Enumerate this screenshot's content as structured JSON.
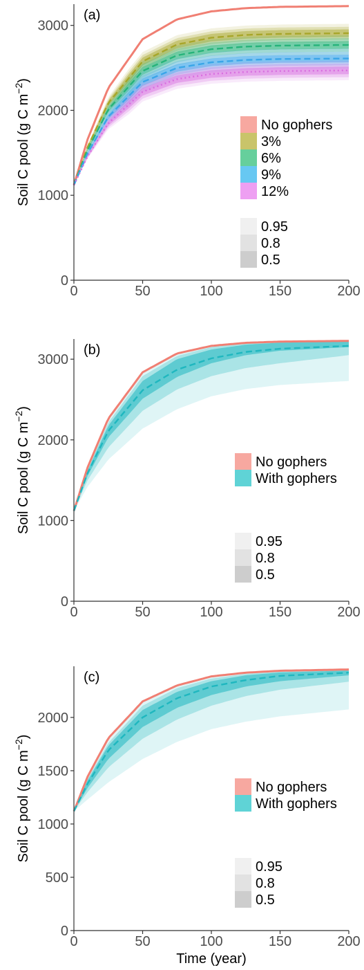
{
  "chart_data": [
    {
      "type": "line",
      "panel_label": "(a)",
      "ylabel": "Soil C pool (g C m",
      "ylabel_sup": "−2",
      "ylabel_close": ")",
      "xlabel": "",
      "xlim": [
        0,
        200
      ],
      "ylim": [
        0,
        3250
      ],
      "x_ticks": [
        0,
        50,
        100,
        150,
        200
      ],
      "y_ticks": [
        0,
        1000,
        2000,
        3000
      ],
      "series": [
        {
          "name": "No gophers",
          "color": "#f07f73",
          "line_style": "solid",
          "x": [
            0,
            10,
            25,
            50,
            75,
            100,
            125,
            150,
            200
          ],
          "y": [
            1120,
            1660,
            2263,
            2838,
            3071,
            3165,
            3203,
            3218,
            3227
          ],
          "band": null
        },
        {
          "name": "3%",
          "color": "#a7a62a",
          "line_style": "dashed",
          "x": [
            0,
            10,
            25,
            50,
            75,
            100,
            125,
            150,
            200
          ],
          "y": [
            1120,
            1570,
            2085,
            2576,
            2775,
            2855,
            2888,
            2900,
            2908
          ],
          "band": [
            45,
            75,
            110
          ]
        },
        {
          "name": "6%",
          "color": "#26b37a",
          "line_style": "dashed",
          "x": [
            0,
            10,
            25,
            50,
            75,
            100,
            125,
            150,
            200
          ],
          "y": [
            1120,
            1535,
            2010,
            2463,
            2647,
            2720,
            2750,
            2762,
            2770
          ],
          "band": [
            45,
            80,
            115
          ]
        },
        {
          "name": "9%",
          "color": "#3aa5e8",
          "line_style": "dashed",
          "x": [
            0,
            10,
            25,
            50,
            75,
            100,
            125,
            150,
            200
          ],
          "y": [
            1120,
            1495,
            1924,
            2333,
            2499,
            2565,
            2593,
            2604,
            2610
          ],
          "band": [
            45,
            80,
            120
          ]
        },
        {
          "name": "12%",
          "color": "#d86ee0",
          "line_style": "dotted",
          "x": [
            0,
            10,
            25,
            50,
            75,
            100,
            125,
            150,
            200
          ],
          "y": [
            1120,
            1460,
            1848,
            2218,
            2368,
            2428,
            2452,
            2462,
            2470
          ],
          "band": [
            45,
            80,
            115
          ]
        }
      ],
      "legend_series": [
        "No gophers",
        "3%",
        "6%",
        "9%",
        "12%"
      ],
      "legend_series_colors": [
        "#f7a8a0",
        "#c9c46a",
        "#66cf9c",
        "#67c8f2",
        "#ee9ff2"
      ],
      "legend_ci": [
        "0.95",
        "0.8",
        "0.5"
      ],
      "legend_ci_colors": [
        "#f0f0f0",
        "#e2e2e2",
        "#cdcdcd"
      ],
      "legend_position": "right"
    },
    {
      "type": "line",
      "panel_label": "(b)",
      "ylabel": "Soil C pool (g C m",
      "ylabel_sup": "−2",
      "ylabel_close": ")",
      "xlabel": "",
      "xlim": [
        0,
        200
      ],
      "ylim": [
        0,
        3250
      ],
      "x_ticks": [
        0,
        50,
        100,
        150,
        200
      ],
      "y_ticks": [
        0,
        1000,
        2000,
        3000
      ],
      "series": [
        {
          "name": "No gophers",
          "color": "#f07f73",
          "line_style": "solid",
          "x": [
            0,
            10,
            25,
            50,
            75,
            100,
            125,
            150,
            200
          ],
          "y": [
            1120,
            1660,
            2263,
            2838,
            3071,
            3165,
            3203,
            3218,
            3227
          ],
          "band": null
        },
        {
          "name": "With gophers",
          "color": "#1fb7bf",
          "line_style": "dashed",
          "x": [
            0,
            10,
            25,
            50,
            75,
            100,
            125,
            150,
            200
          ],
          "y": [
            1120,
            1590,
            2110,
            2615,
            2870,
            3010,
            3090,
            3130,
            3165
          ],
          "ci95_lower": [
            1120,
            1420,
            1755,
            2140,
            2380,
            2540,
            2630,
            2680,
            2730
          ],
          "ci95_upper": [
            1120,
            1655,
            2250,
            2825,
            3062,
            3160,
            3200,
            3215,
            3225
          ],
          "ci80_lower": [
            1120,
            1500,
            1905,
            2360,
            2625,
            2790,
            2890,
            2950,
            3050
          ],
          "ci80_upper": [
            1120,
            1640,
            2215,
            2790,
            3040,
            3150,
            3195,
            3212,
            3222
          ],
          "ci50_lower": [
            1120,
            1555,
            2030,
            2510,
            2780,
            2950,
            3050,
            3105,
            3150
          ],
          "ci50_upper": [
            1120,
            1620,
            2175,
            2730,
            3000,
            3120,
            3180,
            3205,
            3218
          ]
        }
      ],
      "legend_series": [
        "No gophers",
        "With gophers"
      ],
      "legend_series_colors": [
        "#f7a8a0",
        "#5fd3d6"
      ],
      "legend_ci": [
        "0.95",
        "0.8",
        "0.5"
      ],
      "legend_ci_colors": [
        "#f0f0f0",
        "#e2e2e2",
        "#cdcdcd"
      ],
      "legend_position": "right"
    },
    {
      "type": "line",
      "panel_label": "(c)",
      "ylabel": "Soil C pool (g C m",
      "ylabel_sup": "−2",
      "ylabel_close": ")",
      "xlabel": "Time (year)",
      "xlim": [
        0,
        200
      ],
      "ylim": [
        0,
        2480
      ],
      "x_ticks": [
        0,
        50,
        100,
        150,
        200
      ],
      "y_ticks": [
        0,
        500,
        1000,
        1500,
        2000
      ],
      "series": [
        {
          "name": "No gophers",
          "color": "#f07f73",
          "line_style": "solid",
          "x": [
            0,
            10,
            25,
            50,
            75,
            100,
            125,
            150,
            200
          ],
          "y": [
            1120,
            1445,
            1805,
            2150,
            2300,
            2385,
            2420,
            2438,
            2450
          ],
          "band": null
        },
        {
          "name": "With gophers",
          "color": "#1fb7bf",
          "line_style": "dashed",
          "x": [
            0,
            10,
            25,
            50,
            75,
            100,
            125,
            150,
            200
          ],
          "y": [
            1120,
            1380,
            1690,
            2000,
            2180,
            2290,
            2350,
            2390,
            2420
          ],
          "ci95_lower": [
            1120,
            1230,
            1390,
            1610,
            1770,
            1890,
            1960,
            2010,
            2075
          ],
          "ci95_upper": [
            1120,
            1440,
            1790,
            2140,
            2295,
            2380,
            2418,
            2436,
            2448
          ],
          "ci80_lower": [
            1120,
            1300,
            1530,
            1800,
            1980,
            2110,
            2200,
            2260,
            2335
          ],
          "ci80_upper": [
            1120,
            1425,
            1760,
            2110,
            2275,
            2365,
            2408,
            2430,
            2445
          ],
          "ci50_lower": [
            1120,
            1340,
            1610,
            1910,
            2090,
            2210,
            2290,
            2340,
            2395
          ],
          "ci50_upper": [
            1120,
            1410,
            1735,
            2070,
            2240,
            2340,
            2395,
            2422,
            2440
          ]
        }
      ],
      "legend_series": [
        "No gophers",
        "With gophers"
      ],
      "legend_series_colors": [
        "#f7a8a0",
        "#5fd3d6"
      ],
      "legend_ci": [
        "0.95",
        "0.8",
        "0.5"
      ],
      "legend_ci_colors": [
        "#f0f0f0",
        "#e2e2e2",
        "#cdcdcd"
      ],
      "legend_position": "right"
    }
  ]
}
